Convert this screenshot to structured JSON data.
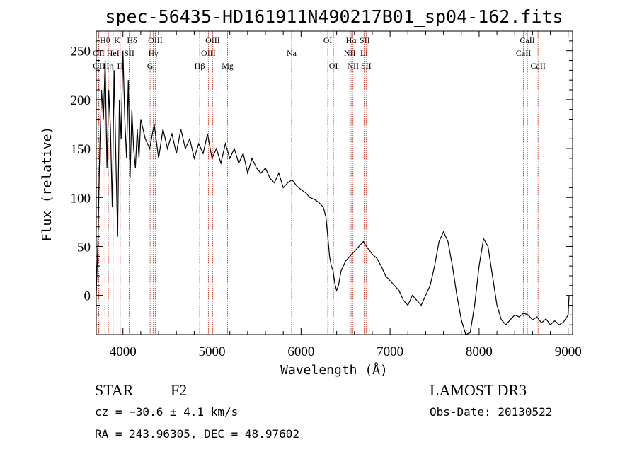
{
  "chart_data": {
    "type": "line",
    "title": "spec-56435-HD161911N490217B01_sp04-162.fits",
    "xlabel": "Wavelength (Å)",
    "ylabel": "Flux (relative)",
    "xlim": [
      3700,
      9050
    ],
    "ylim": [
      -40,
      270
    ],
    "x_ticks": [
      4000,
      5000,
      6000,
      7000,
      8000,
      9000
    ],
    "y_ticks": [
      0,
      50,
      100,
      150,
      200,
      250
    ],
    "grid": false,
    "series": [
      {
        "color": "#000000",
        "x": [
          3700,
          3720,
          3740,
          3760,
          3780,
          3800,
          3820,
          3840,
          3860,
          3880,
          3900,
          3920,
          3940,
          3960,
          3980,
          4000,
          4020,
          4040,
          4060,
          4080,
          4100,
          4120,
          4140,
          4160,
          4180,
          4200,
          4250,
          4300,
          4350,
          4400,
          4450,
          4500,
          4550,
          4600,
          4650,
          4700,
          4750,
          4800,
          4850,
          4900,
          4950,
          5000,
          5050,
          5100,
          5150,
          5200,
          5250,
          5300,
          5350,
          5400,
          5450,
          5500,
          5550,
          5600,
          5650,
          5700,
          5750,
          5800,
          5850,
          5900,
          5950,
          6000,
          6050,
          6100,
          6150,
          6200,
          6250,
          6280,
          6300,
          6320,
          6340,
          6360,
          6380,
          6400,
          6420,
          6450,
          6500,
          6550,
          6600,
          6650,
          6700,
          6720,
          6750,
          6800,
          6850,
          6900,
          6950,
          7000,
          7050,
          7100,
          7150,
          7200,
          7250,
          7300,
          7350,
          7400,
          7450,
          7500,
          7550,
          7600,
          7650,
          7700,
          7750,
          7800,
          7850,
          7900,
          7950,
          8000,
          8050,
          8100,
          8150,
          8200,
          8250,
          8300,
          8350,
          8400,
          8450,
          8500,
          8550,
          8600,
          8650,
          8700,
          8750,
          8800,
          8850,
          8900,
          8950,
          9000,
          9010
        ],
        "y": [
          0,
          60,
          150,
          210,
          180,
          240,
          130,
          210,
          170,
          90,
          230,
          140,
          60,
          200,
          160,
          250,
          180,
          140,
          220,
          120,
          190,
          150,
          130,
          170,
          140,
          180,
          160,
          150,
          175,
          140,
          170,
          150,
          165,
          145,
          170,
          150,
          160,
          140,
          155,
          145,
          165,
          140,
          150,
          135,
          155,
          140,
          150,
          135,
          145,
          125,
          140,
          130,
          125,
          130,
          120,
          115,
          125,
          110,
          115,
          118,
          112,
          108,
          105,
          100,
          98,
          95,
          90,
          80,
          60,
          40,
          30,
          25,
          12,
          5,
          10,
          25,
          35,
          40,
          45,
          50,
          55,
          52,
          48,
          42,
          38,
          30,
          20,
          15,
          10,
          5,
          -5,
          -10,
          0,
          -5,
          -10,
          0,
          10,
          30,
          55,
          65,
          55,
          30,
          0,
          -25,
          -40,
          -38,
          -10,
          30,
          58,
          50,
          20,
          -10,
          -25,
          -30,
          -25,
          -20,
          -22,
          -18,
          -20,
          -25,
          -22,
          -28,
          -24,
          -30,
          -26,
          -30,
          -27,
          -20,
          0
        ],
        "values_description_omitted": ""
      }
    ],
    "emission_lines": [
      {
        "label": "Hθ",
        "x": 3798,
        "row": 0
      },
      {
        "label": "OII",
        "x": 3727,
        "row": 1
      },
      {
        "label": "OII",
        "x": 3729,
        "row": 2
      },
      {
        "label": "Hη",
        "x": 3836,
        "row": 2
      },
      {
        "label": "HeI",
        "x": 3889,
        "row": 1
      },
      {
        "label": "K",
        "x": 3934,
        "row": 0
      },
      {
        "label": "H",
        "x": 3969,
        "row": 2
      },
      {
        "label": "SII",
        "x": 4070,
        "row": 1
      },
      {
        "label": "Hδ",
        "x": 4102,
        "row": 0
      },
      {
        "label": "OIII",
        "x": 4363,
        "row": 0
      },
      {
        "label": "Hγ",
        "x": 4341,
        "row": 1
      },
      {
        "label": "G",
        "x": 4305,
        "row": 2
      },
      {
        "label": "Hβ",
        "x": 4861,
        "row": 2
      },
      {
        "label": "OIII",
        "x": 5007,
        "row": 0
      },
      {
        "label": "OIII",
        "x": 4959,
        "row": 1
      },
      {
        "label": "Mg",
        "x": 5175,
        "row": 2
      },
      {
        "label": "Na",
        "x": 5894,
        "row": 1
      },
      {
        "label": "OI",
        "x": 6300,
        "row": 0
      },
      {
        "label": "OI",
        "x": 6364,
        "row": 2
      },
      {
        "label": "Hα",
        "x": 6563,
        "row": 0
      },
      {
        "label": "SII",
        "x": 6716,
        "row": 0
      },
      {
        "label": "NII",
        "x": 6548,
        "row": 1
      },
      {
        "label": "Li",
        "x": 6708,
        "row": 1
      },
      {
        "label": "NII",
        "x": 6583,
        "row": 2
      },
      {
        "label": "SII",
        "x": 6731,
        "row": 2
      },
      {
        "label": "CaII",
        "x": 8542,
        "row": 0
      },
      {
        "label": "CaII",
        "x": 8498,
        "row": 1
      },
      {
        "label": "CaII",
        "x": 8662,
        "row": 2
      }
    ]
  },
  "info": {
    "object_class": "STAR",
    "subclass": "F2",
    "survey": "LAMOST DR3",
    "redshift": "cz = −30.6 ± 4.1 km/s",
    "obs_date": "Obs-Date: 20130522",
    "coords": "RA = 243.96305, DEC =  48.97602"
  }
}
